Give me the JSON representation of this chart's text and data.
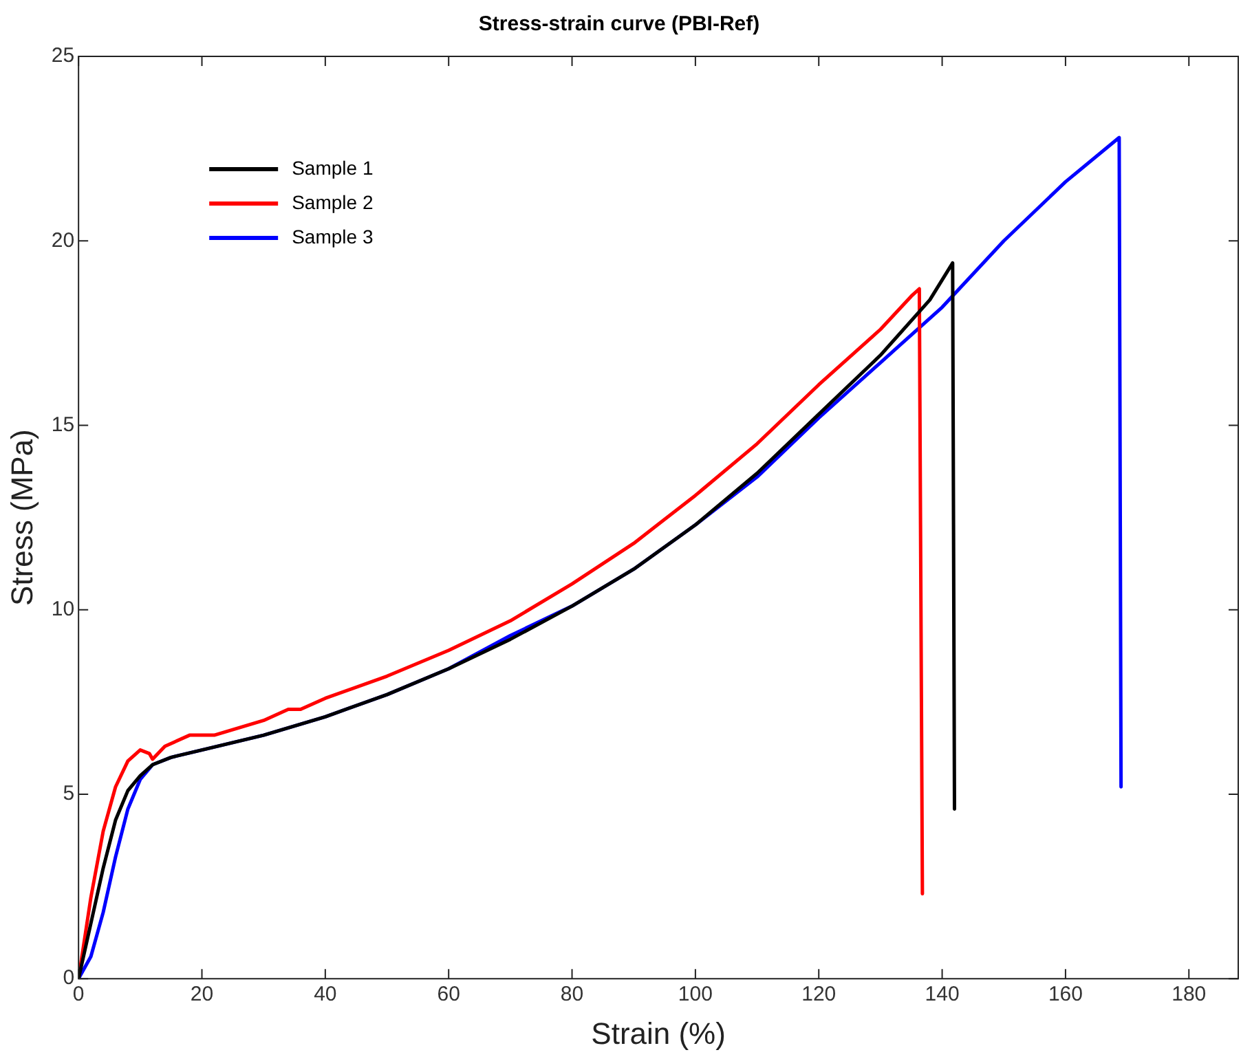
{
  "chart_data": {
    "type": "line",
    "title": "Stress-strain curve (PBI-Ref)",
    "xlabel": "Strain (%)",
    "ylabel": "Stress (MPa)",
    "xlim": [
      0,
      188
    ],
    "xticks": [
      0,
      20,
      40,
      60,
      80,
      100,
      120,
      140,
      160,
      180
    ],
    "ylim": [
      0,
      25
    ],
    "yticks": [
      0,
      5,
      10,
      15,
      20,
      25
    ],
    "grid": false,
    "legend": "top left",
    "marker": "none",
    "line_style": "solid",
    "series": [
      {
        "name": "Sample 1",
        "color": "#000000",
        "x": [
          0,
          2,
          4,
          6,
          8,
          10,
          12,
          15,
          20,
          30,
          40,
          50,
          60,
          70,
          80,
          90,
          100,
          110,
          120,
          130,
          138,
          141.7,
          142
        ],
        "values": [
          0,
          1.5,
          3,
          4.3,
          5.1,
          5.5,
          5.8,
          6.0,
          6.2,
          6.6,
          7.1,
          7.7,
          8.4,
          9.2,
          10.1,
          11.1,
          12.3,
          13.7,
          15.3,
          16.9,
          18.4,
          19.4,
          4.6
        ]
      },
      {
        "name": "Sample 2",
        "color": "#ff0000",
        "x": [
          0,
          2,
          4,
          6,
          8,
          10,
          11.5,
          12,
          14,
          18,
          22,
          30,
          34,
          36,
          40,
          50,
          60,
          70,
          80,
          90,
          100,
          110,
          120,
          130,
          135,
          136.3,
          136.8
        ],
        "values": [
          0,
          2.2,
          4.0,
          5.2,
          5.9,
          6.2,
          6.1,
          5.95,
          6.3,
          6.6,
          6.6,
          7.0,
          7.3,
          7.3,
          7.6,
          8.2,
          8.9,
          9.7,
          10.7,
          11.8,
          13.1,
          14.5,
          16.1,
          17.6,
          18.5,
          18.7,
          2.3
        ]
      },
      {
        "name": "Sample 3",
        "color": "#0000ff",
        "x": [
          0,
          2,
          4,
          6,
          8,
          10,
          12,
          15,
          20,
          30,
          40,
          50,
          60,
          70,
          80,
          90,
          100,
          110,
          120,
          130,
          140,
          145,
          150,
          160,
          168.7,
          169
        ],
        "values": [
          0,
          0.6,
          1.8,
          3.3,
          4.6,
          5.4,
          5.8,
          6.0,
          6.2,
          6.6,
          7.1,
          7.7,
          8.4,
          9.3,
          10.1,
          11.1,
          12.3,
          13.6,
          15.2,
          16.7,
          18.2,
          19.1,
          20.0,
          21.6,
          22.8,
          5.2
        ]
      }
    ]
  }
}
